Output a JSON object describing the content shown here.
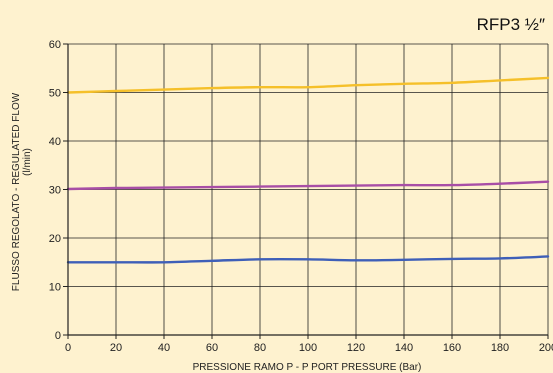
{
  "colors": {
    "background": "#fef2cf",
    "grid": "#222222",
    "axis": "#222222",
    "text": "#222222"
  },
  "chart_data": {
    "type": "line",
    "title": "RFP3 ½″",
    "xlabel": "PRESSIONE RAMO P - P PORT PRESSURE (Bar)",
    "ylabel": "FLUSSO REGOLATO - REGULATED FLOW",
    "ylabel_unit": "(l/min)",
    "xlim": [
      0,
      200
    ],
    "ylim": [
      0,
      60
    ],
    "x_ticks": [
      0,
      20,
      40,
      60,
      80,
      100,
      120,
      140,
      160,
      180,
      200
    ],
    "y_ticks": [
      0,
      10,
      20,
      30,
      40,
      50,
      60
    ],
    "grid": true,
    "x": [
      0,
      20,
      40,
      60,
      80,
      100,
      120,
      140,
      160,
      180,
      200
    ],
    "series": [
      {
        "color": "#f5c02a",
        "values": [
          50.0,
          50.3,
          50.6,
          50.9,
          51.1,
          51.1,
          51.5,
          51.8,
          52.0,
          52.5,
          53.0
        ]
      },
      {
        "color": "#a84ea6",
        "values": [
          30.1,
          30.3,
          30.4,
          30.5,
          30.6,
          30.7,
          30.8,
          30.9,
          30.9,
          31.2,
          31.6
        ]
      },
      {
        "color": "#3e5fb8",
        "values": [
          15.0,
          15.0,
          15.0,
          15.3,
          15.6,
          15.6,
          15.4,
          15.5,
          15.7,
          15.8,
          16.2
        ]
      }
    ]
  }
}
